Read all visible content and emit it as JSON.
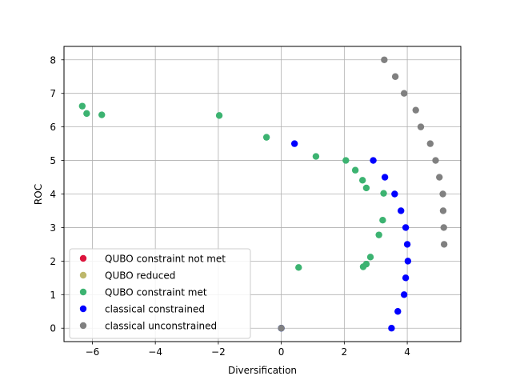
{
  "chart_data": {
    "type": "scatter",
    "xlabel": "Diversification",
    "ylabel": "ROC",
    "xlim": [
      -6.9,
      5.7
    ],
    "ylim": [
      -0.4,
      8.4
    ],
    "xticks": [
      -6,
      -4,
      -2,
      0,
      2,
      4
    ],
    "xtick_labels": [
      "−6",
      "−4",
      "−2",
      "0",
      "2",
      "4"
    ],
    "yticks": [
      0,
      1,
      2,
      3,
      4,
      5,
      6,
      7,
      8
    ],
    "ytick_labels": [
      "0",
      "1",
      "2",
      "3",
      "4",
      "5",
      "6",
      "7",
      "8"
    ],
    "grid": true,
    "legend_position": "lower-left",
    "series": [
      {
        "name": "QUBO constraint not met",
        "color": "#dc143c",
        "points": []
      },
      {
        "name": "QUBO reduced",
        "color": "#bdb76b",
        "points": []
      },
      {
        "name": "QUBO constraint met",
        "color": "#3cb371",
        "points": [
          [
            -6.32,
            6.62
          ],
          [
            -6.18,
            6.4
          ],
          [
            -5.7,
            6.36
          ],
          [
            -1.97,
            6.34
          ],
          [
            -0.47,
            5.69
          ],
          [
            1.1,
            5.12
          ],
          [
            2.05,
            5.0
          ],
          [
            2.35,
            4.71
          ],
          [
            2.58,
            4.41
          ],
          [
            2.7,
            4.18
          ],
          [
            3.25,
            4.02
          ],
          [
            3.22,
            3.22
          ],
          [
            3.1,
            2.78
          ],
          [
            2.83,
            2.12
          ],
          [
            2.7,
            1.91
          ],
          [
            2.6,
            1.83
          ],
          [
            0.55,
            1.81
          ],
          [
            0.0,
            0.0
          ]
        ]
      },
      {
        "name": "classical constrained",
        "color": "#0000ff",
        "points": [
          [
            0.42,
            5.5
          ],
          [
            2.92,
            5.0
          ],
          [
            3.29,
            4.5
          ],
          [
            3.6,
            4.0
          ],
          [
            3.8,
            3.5
          ],
          [
            3.95,
            3.0
          ],
          [
            4.0,
            2.5
          ],
          [
            4.02,
            2.0
          ],
          [
            3.95,
            1.5
          ],
          [
            3.9,
            1.0
          ],
          [
            3.7,
            0.5
          ],
          [
            3.5,
            0.0
          ],
          [
            0.0,
            0.0
          ]
        ]
      },
      {
        "name": "classical unconstrained",
        "color": "#808080",
        "points": [
          [
            3.27,
            8.0
          ],
          [
            3.62,
            7.5
          ],
          [
            3.9,
            7.0
          ],
          [
            4.27,
            6.5
          ],
          [
            4.43,
            6.0
          ],
          [
            4.73,
            5.5
          ],
          [
            4.9,
            5.0
          ],
          [
            5.02,
            4.5
          ],
          [
            5.13,
            4.0
          ],
          [
            5.14,
            3.5
          ],
          [
            5.16,
            3.0
          ],
          [
            5.17,
            2.5
          ],
          [
            0.0,
            0.0
          ]
        ]
      }
    ]
  }
}
